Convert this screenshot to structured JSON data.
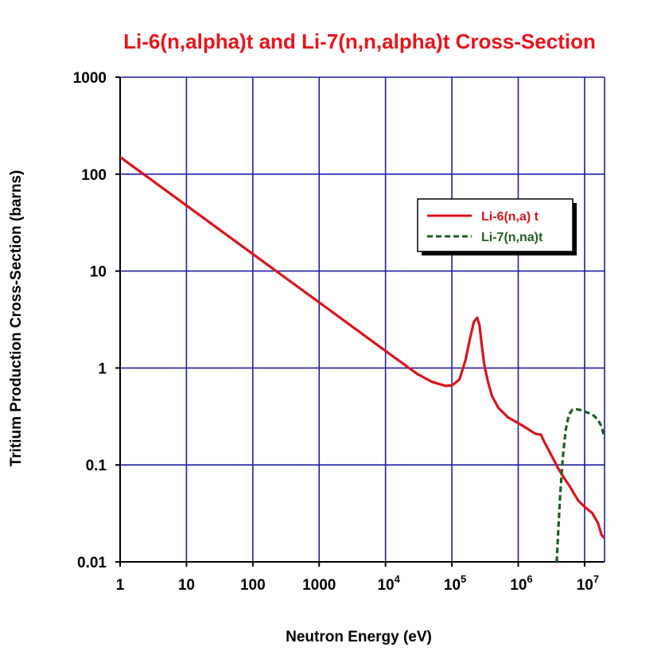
{
  "chart_data": {
    "type": "line",
    "title": "Li-6(n,alpha)t and Li-7(n,n,alpha)t Cross-Section",
    "xlabel": "Neutron Energy (eV)",
    "ylabel": "Tritium Production Cross-Section (barns)",
    "x_scale": "log",
    "y_scale": "log",
    "xlim": [
      1,
      20000000
    ],
    "ylim": [
      0.01,
      1000
    ],
    "grid": true,
    "legend_position": "upper-right",
    "x_ticks": [
      {
        "value": 1,
        "base": "1",
        "exp": ""
      },
      {
        "value": 10,
        "base": "10",
        "exp": ""
      },
      {
        "value": 100,
        "base": "100",
        "exp": ""
      },
      {
        "value": 1000,
        "base": "1000",
        "exp": ""
      },
      {
        "value": 10000,
        "base": "10",
        "exp": "4"
      },
      {
        "value": 100000,
        "base": "10",
        "exp": "5"
      },
      {
        "value": 1000000,
        "base": "10",
        "exp": "6"
      },
      {
        "value": 10000000,
        "base": "10",
        "exp": "7"
      }
    ],
    "y_ticks": [
      {
        "value": 1000,
        "label": "1000"
      },
      {
        "value": 100,
        "label": "100"
      },
      {
        "value": 10,
        "label": "10"
      },
      {
        "value": 1,
        "label": "1"
      },
      {
        "value": 0.1,
        "label": "0.1"
      },
      {
        "value": 0.01,
        "label": "0.01"
      }
    ],
    "series": [
      {
        "name": "Li-6(n,a) t",
        "color": "#d9141b",
        "style": "solid",
        "x": [
          1,
          10,
          100,
          1000,
          10000,
          30000,
          50000,
          80000,
          100000,
          130000,
          160000,
          190000,
          215000,
          240000,
          260000,
          280000,
          310000,
          350000,
          400000,
          500000,
          700000,
          1000000,
          1400000,
          1800000,
          2200000,
          2500000,
          3000000,
          3500000,
          4000000,
          5000000,
          6000000,
          7000000,
          8000000,
          10000000,
          13000000,
          16000000,
          18000000,
          20000000
        ],
        "y": [
          150,
          47.5,
          15,
          4.75,
          1.5,
          0.87,
          0.72,
          0.655,
          0.66,
          0.76,
          1.2,
          2.1,
          3.0,
          3.3,
          2.8,
          1.8,
          1.05,
          0.72,
          0.52,
          0.39,
          0.31,
          0.27,
          0.235,
          0.21,
          0.205,
          0.17,
          0.135,
          0.11,
          0.092,
          0.072,
          0.06,
          0.05,
          0.043,
          0.037,
          0.032,
          0.025,
          0.019,
          0.0175
        ]
      },
      {
        "name": "Li-7(n,na)t",
        "color": "#1e5e23",
        "style": "dashed",
        "x": [
          3800000,
          4000000,
          4300000,
          4700000,
          5200000,
          5800000,
          6500000,
          7500000,
          8500000,
          10000000,
          12000000,
          14000000,
          16000000,
          18000000,
          20000000
        ],
        "y": [
          0.01,
          0.02,
          0.05,
          0.12,
          0.23,
          0.33,
          0.37,
          0.375,
          0.37,
          0.355,
          0.34,
          0.32,
          0.29,
          0.25,
          0.19
        ]
      }
    ]
  }
}
